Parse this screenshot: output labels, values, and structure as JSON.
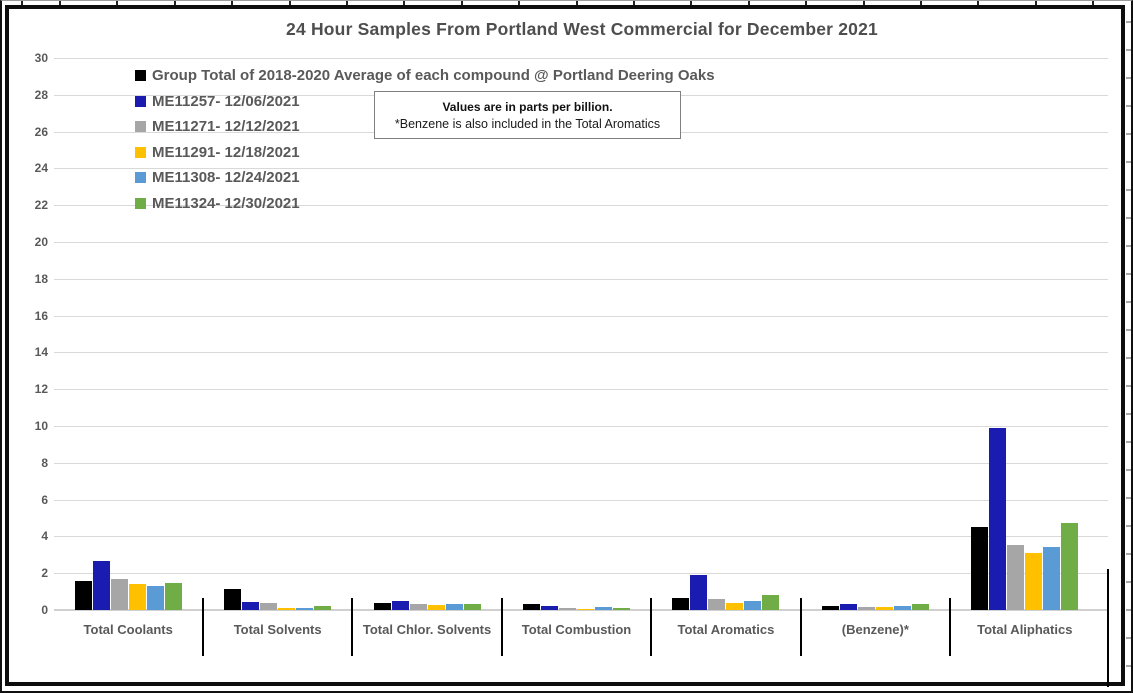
{
  "chart_data": {
    "type": "bar",
    "title": "24 Hour Samples From Portland West Commercial for December 2021",
    "categories": [
      "Total Coolants",
      "Total Solvents",
      "Total Chlor. Solvents",
      "Total Combustion",
      "Total Aromatics",
      "(Benzene)*",
      "Total Aliphatics"
    ],
    "series": [
      {
        "name": "Group Total of 2018-2020 Average of each compound @ Portland Deering Oaks",
        "color": "#000000",
        "values": [
          1.6,
          1.15,
          0.4,
          0.3,
          0.65,
          0.2,
          4.5
        ]
      },
      {
        "name": "ME11257- 12/06/2021",
        "color": "#1a1cb0",
        "values": [
          2.65,
          0.45,
          0.5,
          0.2,
          1.9,
          0.3,
          9.9
        ]
      },
      {
        "name": "ME11271- 12/12/2021",
        "color": "#a6a6a6",
        "values": [
          1.7,
          0.4,
          0.3,
          0.1,
          0.6,
          0.15,
          3.55
        ]
      },
      {
        "name": "ME11291- 12/18/2021",
        "color": "#ffc000",
        "values": [
          1.4,
          0.1,
          0.25,
          0.05,
          0.4,
          0.15,
          3.1
        ]
      },
      {
        "name": "ME11308- 12/24/2021",
        "color": "#5b9bd5",
        "values": [
          1.3,
          0.1,
          0.3,
          0.15,
          0.5,
          0.2,
          3.45
        ]
      },
      {
        "name": "ME11324- 12/30/2021",
        "color": "#70ad47",
        "values": [
          1.45,
          0.2,
          0.35,
          0.1,
          0.8,
          0.3,
          4.75
        ]
      }
    ],
    "ylim": [
      0,
      30
    ],
    "ytick_step": 2,
    "grid": true,
    "legend_position": "top-left",
    "units": "parts per billion",
    "note_line1": "Values are in parts per billion.",
    "note_line2": "*Benzene is also included in the Total Aromatics"
  },
  "colors": {
    "grid": "#d9d9d9",
    "axis_text": "#595959",
    "title_text": "#4e4e4e",
    "divider": "#000000",
    "chart_border": "#0d0d0d",
    "background": "#ffffff"
  }
}
